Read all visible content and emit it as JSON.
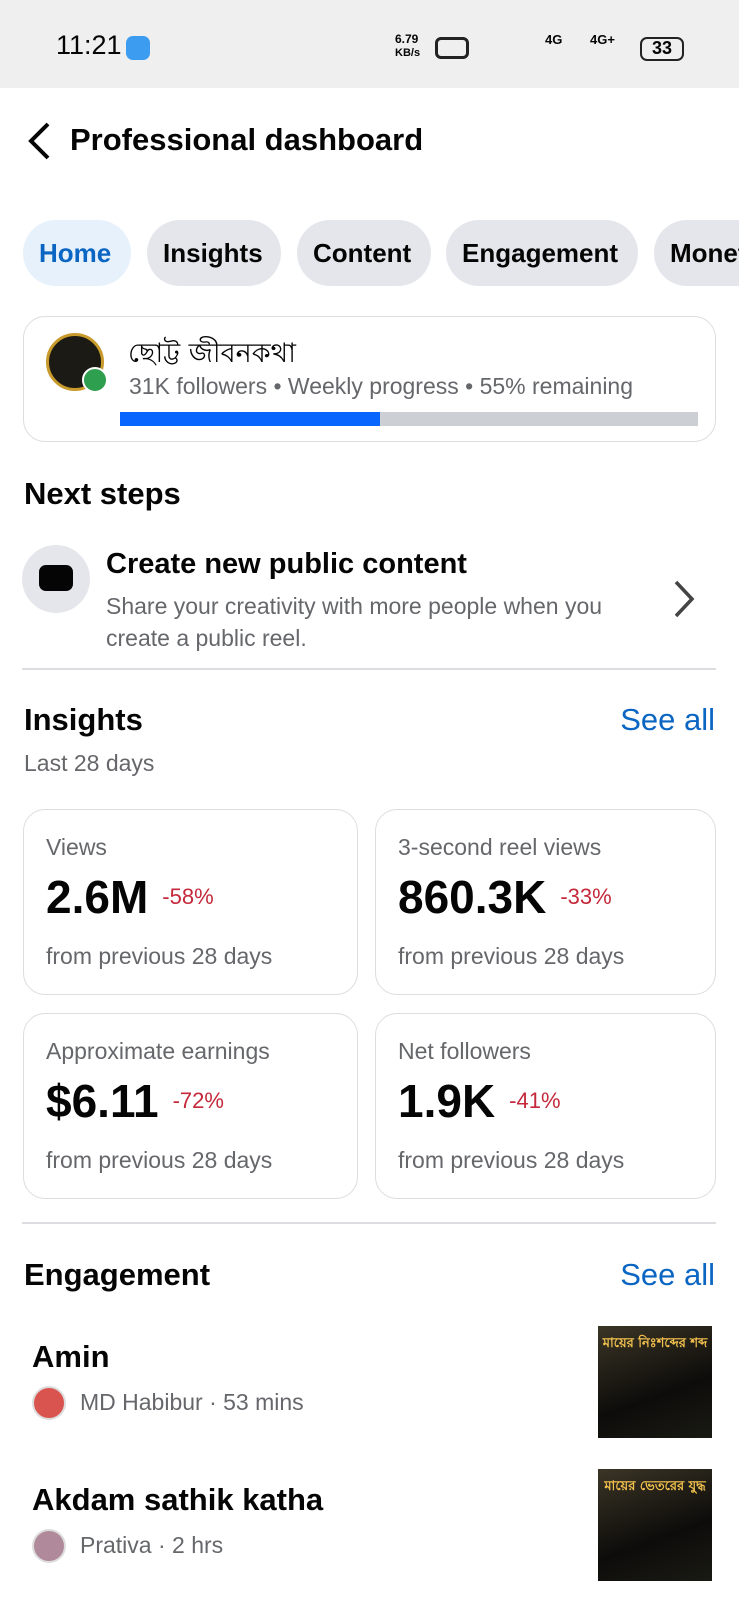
{
  "status_bar": {
    "time": "11:21",
    "speed": "6.79",
    "speed_unit": "KB/s",
    "network_1": "4G",
    "network_2": "4G+",
    "battery": "33"
  },
  "header": {
    "title": "Professional dashboard"
  },
  "tabs": [
    "Home",
    "Insights",
    "Content",
    "Engagement",
    "Monetization"
  ],
  "profile": {
    "name": "ছোট্ট জীবনকথা",
    "subtitle": "31K followers • Weekly progress • 55% remaining"
  },
  "next_steps": {
    "title": "Next steps",
    "item": {
      "title": "Create new public content",
      "description": "Share your creativity with more people when you create a public reel."
    }
  },
  "insights": {
    "title": "Insights",
    "see_all": "See all",
    "period": "Last 28 days",
    "cards": [
      {
        "label": "Views",
        "value": "2.6M",
        "change": "-58%",
        "footer": "from previous 28 days"
      },
      {
        "label": "3-second reel views",
        "value": "860.3K",
        "change": "-33%",
        "footer": "from previous 28 days"
      },
      {
        "label": "Approximate earnings",
        "value": "$6.11",
        "change": "-72%",
        "footer": "from previous 28 days"
      },
      {
        "label": "Net followers",
        "value": "1.9K",
        "change": "-41%",
        "footer": "from previous 28 days"
      }
    ]
  },
  "engagement": {
    "title": "Engagement",
    "see_all": "See all",
    "items": [
      {
        "title": "Amin",
        "meta": "MD Habibur · 53 mins",
        "thumb_title": "মায়ের নিঃশব্দের শব্দ"
      },
      {
        "title": "Akdam sathik katha",
        "meta": "Prativa · 2 hrs",
        "thumb_title": "মায়ের ভেতরের যুদ্ধ"
      }
    ]
  }
}
